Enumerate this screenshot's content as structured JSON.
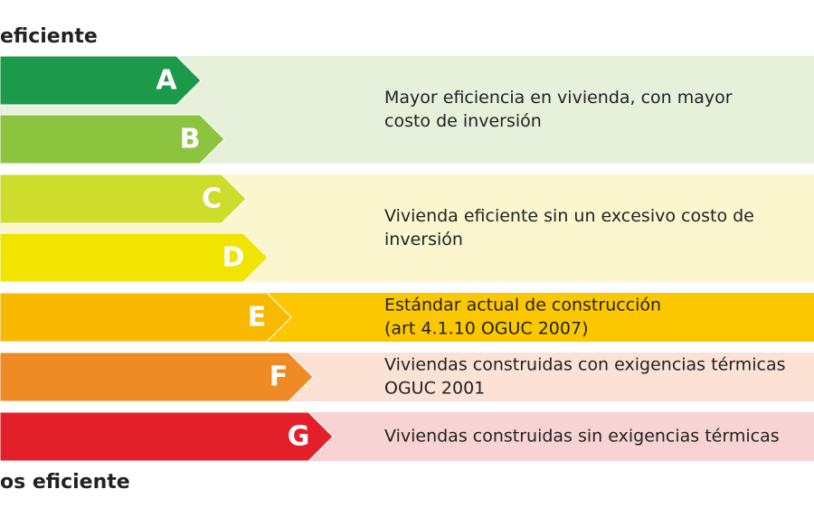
{
  "header": {
    "top": "eficiente",
    "bottom": "os eficiente"
  },
  "classes": [
    {
      "letter": "A",
      "color": "#1b9a4a"
    },
    {
      "letter": "B",
      "color": "#8dc43f"
    },
    {
      "letter": "C",
      "color": "#cedc2b"
    },
    {
      "letter": "D",
      "color": "#f1e400"
    },
    {
      "letter": "E",
      "color": "#f8b900"
    },
    {
      "letter": "F",
      "color": "#f08a24"
    },
    {
      "letter": "G",
      "color": "#e3202a"
    }
  ],
  "descriptions": [
    {
      "lines": [
        "Mayor eficiencia en vivienda, con mayor",
        "costo de inversión"
      ],
      "background": "#e7f0da"
    },
    {
      "lines": [
        "Vivienda eficiente sin un excesivo costo de",
        "inversión"
      ],
      "background": "#fbf6cd"
    },
    {
      "lines": [
        "Estándar actual de construcción",
        "(art 4.1.10 OGUC 2007)"
      ],
      "background": "#fbc800"
    },
    {
      "lines": [
        "Viviendas construidas con exigencias térmicas",
        "OGUC 2001"
      ],
      "background": "#fbe2d4"
    },
    {
      "lines": [
        "Viviendas construidas sin exigencias térmicas"
      ],
      "background": "#f7d3d3"
    }
  ]
}
